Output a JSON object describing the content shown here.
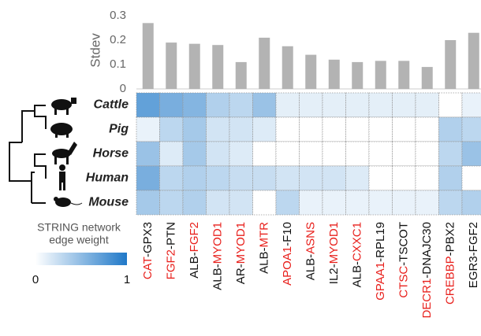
{
  "chart_data": [
    {
      "type": "bar",
      "ylabel": "Stdev",
      "color": "#b3b3b3",
      "highlight_color": "#e8201c",
      "categories": [
        {
          "parts": [
            "CAT",
            "-GPX3"
          ],
          "highlight": 0
        },
        {
          "parts": [
            "FGF2",
            "-PTN"
          ],
          "highlight": 0
        },
        {
          "parts": [
            "ALB-",
            "FGF2"
          ],
          "highlight": 1
        },
        {
          "parts": [
            "ALB-",
            "MYOD1"
          ],
          "highlight": 1
        },
        {
          "parts": [
            "AR-",
            "MYOD1"
          ],
          "highlight": 1
        },
        {
          "parts": [
            "ALB-",
            "MTR"
          ],
          "highlight": 1
        },
        {
          "parts": [
            "APOA1",
            "-F10"
          ],
          "highlight": 0
        },
        {
          "parts": [
            "ALB-",
            "ASNS"
          ],
          "highlight": 1
        },
        {
          "parts": [
            "IL2-",
            "MYOD1"
          ],
          "highlight": 1
        },
        {
          "parts": [
            "ALB-",
            "CXXC1"
          ],
          "highlight": 1
        },
        {
          "parts": [
            "GPAA1",
            "-RPL19"
          ],
          "highlight": 0
        },
        {
          "parts": [
            "CTSC",
            "-TSCOT"
          ],
          "highlight": 0
        },
        {
          "parts": [
            "DECR1",
            "-DNAJC30"
          ],
          "highlight": 0
        },
        {
          "parts": [
            "CREBBP",
            "-PBX2"
          ],
          "highlight": 0
        },
        {
          "parts": [
            "EGR3-FGF2"
          ]
        }
      ],
      "values": [
        0.27,
        0.19,
        0.185,
        0.18,
        0.11,
        0.21,
        0.175,
        0.14,
        0.12,
        0.11,
        0.115,
        0.115,
        0.09,
        0.2,
        0.23
      ],
      "ylim": [
        0,
        0.3
      ],
      "yticks": [
        0,
        0.1,
        0.2,
        0.3
      ]
    },
    {
      "type": "heatmap",
      "rows": [
        "Cattle",
        "Pig",
        "Horse",
        "Human",
        "Mouse"
      ],
      "values": [
        [
          0.7,
          0.6,
          0.55,
          0.35,
          0.3,
          0.45,
          0.12,
          0.12,
          0.12,
          0.12,
          0.12,
          0.12,
          0.12,
          0,
          0.1
        ],
        [
          0.1,
          0.3,
          0.4,
          0.2,
          0.2,
          0.15,
          0,
          0,
          0,
          0,
          0,
          0,
          0,
          0.35,
          0.3
        ],
        [
          0.45,
          0.15,
          0.4,
          0.2,
          0.15,
          0,
          0,
          0,
          0,
          0,
          0,
          0,
          0,
          0.3,
          0.45
        ],
        [
          0.6,
          0.3,
          0.35,
          0.3,
          0.25,
          0.25,
          0.2,
          0.2,
          0.2,
          0.15,
          0,
          0,
          0,
          0.35,
          0
        ],
        [
          0.4,
          0.3,
          0.35,
          0.2,
          0.2,
          0,
          0.3,
          0.1,
          0.1,
          0.1,
          0.1,
          0.1,
          0.1,
          0.3,
          0.35
        ]
      ],
      "colorbar_label": [
        "STRING network",
        "edge weight"
      ],
      "clim": [
        0,
        1
      ],
      "cticks": [
        0,
        1
      ],
      "color_low": "#ffffff",
      "color_high": "#1f78c8"
    }
  ]
}
